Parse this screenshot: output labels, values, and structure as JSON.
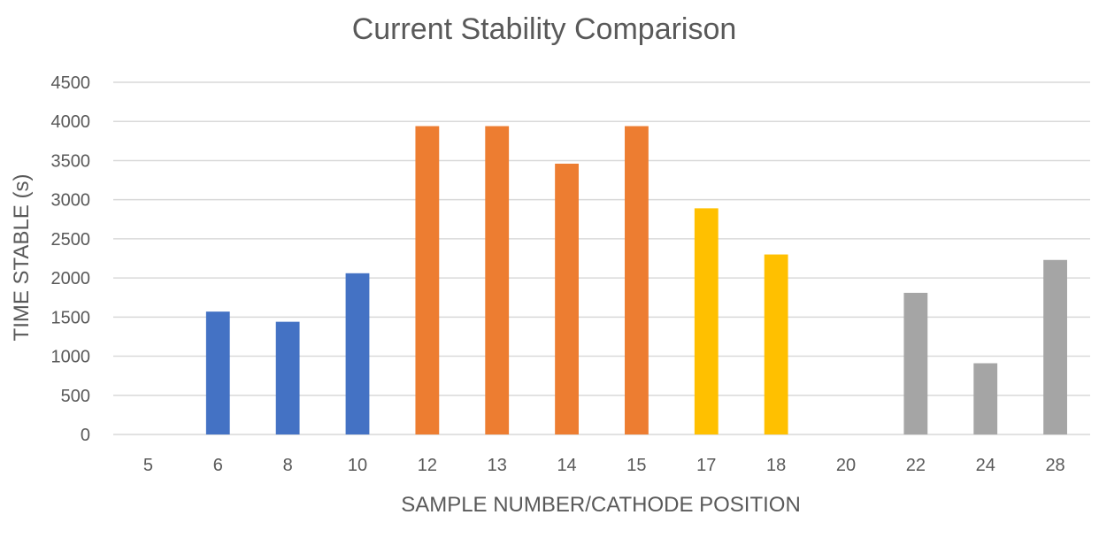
{
  "chart_data": {
    "type": "bar",
    "title": "Current Stability Comparison",
    "xlabel": "SAMPLE NUMBER/CATHODE POSITION",
    "ylabel": "TIME STABLE (s)",
    "ylim": [
      0,
      4500
    ],
    "yticks": [
      0,
      500,
      1000,
      1500,
      2000,
      2500,
      3000,
      3500,
      4000,
      4500
    ],
    "grid": true,
    "legend": "none",
    "categories": [
      "5",
      "6",
      "8",
      "10",
      "12",
      "13",
      "14",
      "15",
      "17",
      "18",
      "20",
      "22",
      "24",
      "28"
    ],
    "values": [
      0,
      1570,
      1440,
      2060,
      3940,
      3940,
      3460,
      3940,
      2890,
      2300,
      0,
      1810,
      910,
      2230
    ],
    "colors": [
      "#4472C4",
      "#4472C4",
      "#4472C4",
      "#4472C4",
      "#ED7D31",
      "#ED7D31",
      "#ED7D31",
      "#ED7D31",
      "#FFC000",
      "#FFC000",
      "#A5A5A5",
      "#A5A5A5",
      "#A5A5A5",
      "#A5A5A5"
    ]
  }
}
